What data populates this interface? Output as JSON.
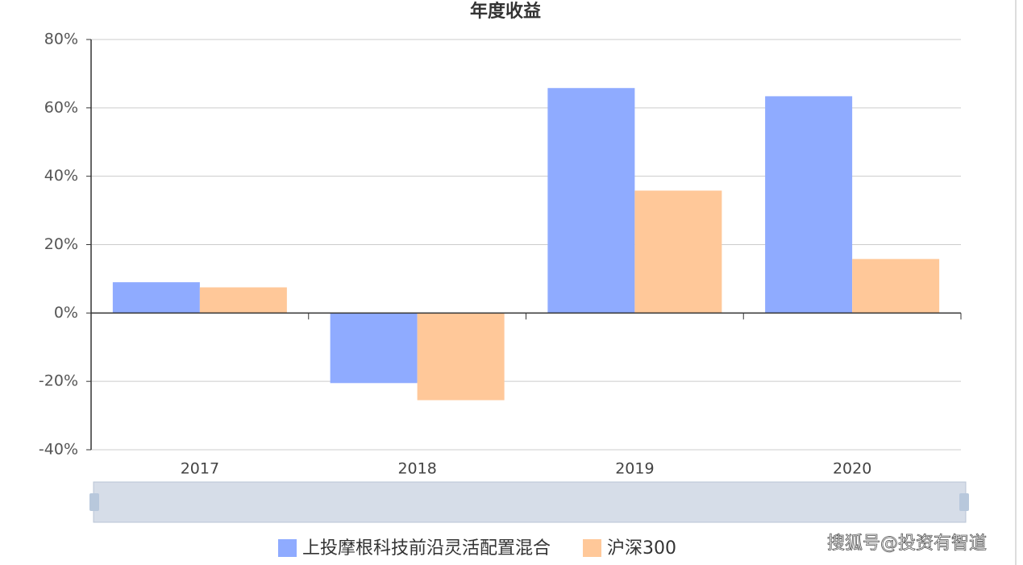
{
  "chart_data": {
    "type": "bar",
    "title": "年度收益",
    "categories": [
      "2017",
      "2018",
      "2019",
      "2020"
    ],
    "series": [
      {
        "name": "上投摩根科技前沿灵活配置混合",
        "color": "#8fabff",
        "values": [
          9.0,
          -20.5,
          65.8,
          63.4
        ]
      },
      {
        "name": "沪深300",
        "color": "#ffc899",
        "values": [
          7.5,
          -25.5,
          35.8,
          15.8
        ]
      }
    ],
    "ylim": [
      -40,
      80
    ],
    "yticks": [
      {
        "value": -40,
        "label": "-40%"
      },
      {
        "value": -20,
        "label": "-20%"
      },
      {
        "value": 0,
        "label": "0%"
      },
      {
        "value": 20,
        "label": "20%"
      },
      {
        "value": 40,
        "label": "40%"
      },
      {
        "value": 60,
        "label": "60%"
      },
      {
        "value": 80,
        "label": "80%"
      }
    ],
    "grid": true,
    "legend": "bottom",
    "watermark": "搜狐号@投资有智道"
  }
}
